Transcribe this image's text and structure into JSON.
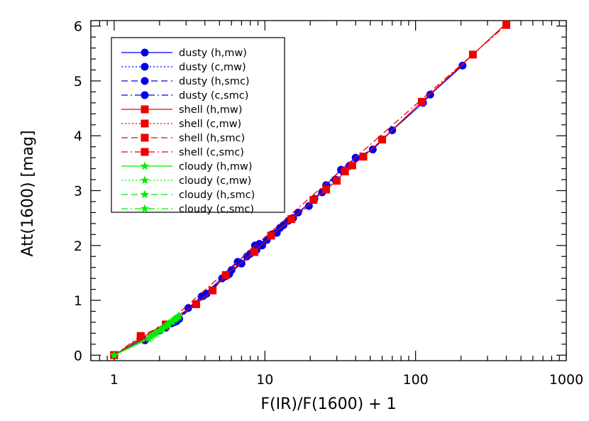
{
  "chart_data": {
    "type": "line",
    "title": "",
    "xlabel": "F(IR)/F(1600) + 1",
    "ylabel": "Att(1600) [mag]",
    "xscale": "log",
    "xlim": [
      0.7,
      1000
    ],
    "ylim": [
      -0.1,
      6.1
    ],
    "x_ticks": [
      1,
      10,
      100,
      1000
    ],
    "x_tick_labels": [
      "1",
      "10",
      "100",
      "1000"
    ],
    "y_ticks": [
      0,
      1,
      2,
      3,
      4,
      5,
      6
    ],
    "y_tick_labels": [
      "0",
      "1",
      "2",
      "3",
      "4",
      "5",
      "6"
    ],
    "grid": false,
    "legend": {
      "placement": "top-left",
      "entries": [
        "dusty (h,mw)",
        "dusty (c,mw)",
        "dusty (h,smc)",
        "dusty (c,smc)",
        "shell (h,mw)",
        "shell (c,mw)",
        "shell (h,smc)",
        "shell (c,smc)",
        "cloudy (h,mw)",
        "cloudy (c,mw)",
        "cloudy (h,smc)",
        "cloudy (c,smc)"
      ]
    },
    "colors": {
      "dusty": "#0000ee",
      "shell": "#ee0000",
      "cloudy": "#00ee00"
    },
    "series": [
      {
        "name": "dusty (h,mw)",
        "color": "#0000ee",
        "marker": "circle",
        "dash": "solid",
        "x": [
          1.0,
          1.6,
          2.2,
          2.7,
          3.1,
          3.8,
          5.2,
          6.6,
          8.6,
          10.3,
          13.3,
          16.6,
          21.3,
          25.5,
          32,
          40,
          52,
          70,
          112,
          125,
          205
        ],
        "y": [
          0.0,
          0.27,
          0.5,
          0.66,
          0.86,
          1.07,
          1.4,
          1.7,
          2.0,
          2.1,
          2.37,
          2.6,
          2.85,
          3.1,
          3.38,
          3.6,
          3.75,
          4.1,
          4.6,
          4.75,
          5.28
        ]
      },
      {
        "name": "dusty (c,mw)",
        "color": "#0000ee",
        "marker": "circle",
        "dash": "dot",
        "x": [
          1.0,
          2.0,
          2.5,
          3.9,
          6.0,
          7.6,
          9.2,
          12.0,
          15.4,
          19.6,
          24.0,
          29.3,
          36.3
        ],
        "y": [
          0.0,
          0.45,
          0.6,
          1.08,
          1.55,
          1.8,
          2.03,
          2.23,
          2.5,
          2.72,
          2.97,
          3.2,
          3.45
        ]
      },
      {
        "name": "dusty (h,smc)",
        "color": "#0000ee",
        "marker": "circle",
        "dash": "dash",
        "x": [
          1.0,
          2.4,
          5.5,
          7.0,
          8.8,
          11.1,
          14.3
        ],
        "y": [
          0.0,
          0.58,
          1.44,
          1.67,
          1.92,
          2.2,
          2.45
        ]
      },
      {
        "name": "dusty (c,smc)",
        "color": "#0000ee",
        "marker": "circle",
        "dash": "dashdot",
        "x": [
          1.0,
          2.6,
          4.1,
          5.8,
          8.0,
          9.6,
          12.6
        ],
        "y": [
          0.0,
          0.62,
          1.12,
          1.48,
          1.85,
          2.0,
          2.32
        ]
      },
      {
        "name": "shell (h,mw)",
        "color": "#ee0000",
        "marker": "square",
        "dash": "solid",
        "x": [
          1.0,
          3.5,
          4.5,
          5.5,
          8.5,
          11.0,
          15.0,
          21.0,
          25.5,
          30.0,
          34.0,
          38.0,
          45.0,
          60.0,
          110.0,
          240.0,
          400.0
        ],
        "y": [
          0.0,
          0.93,
          1.18,
          1.46,
          1.88,
          2.18,
          2.48,
          2.83,
          3.02,
          3.18,
          3.35,
          3.46,
          3.62,
          3.93,
          4.62,
          5.48,
          6.05
        ]
      },
      {
        "name": "shell (c,mw)",
        "color": "#ee0000",
        "marker": "square",
        "dash": "dot",
        "x": [
          1.0,
          1.5,
          2.2
        ],
        "y": [
          0.0,
          0.3,
          0.55
        ]
      },
      {
        "name": "shell (h,smc)",
        "color": "#ee0000",
        "marker": "square",
        "dash": "dash",
        "x": [
          1.0,
          1.5,
          2.2
        ],
        "y": [
          0.0,
          0.32,
          0.55
        ]
      },
      {
        "name": "shell (c,smc)",
        "color": "#ee0000",
        "marker": "square",
        "dash": "dashdot",
        "x": [
          1.0,
          1.5,
          2.2,
          400.0
        ],
        "y": [
          0.0,
          0.35,
          0.56,
          6.02
        ]
      },
      {
        "name": "cloudy (h,mw)",
        "color": "#00ee00",
        "marker": "star",
        "dash": "solid",
        "x": [
          1.0,
          1.7,
          1.9,
          2.1,
          2.3,
          2.5,
          2.65
        ],
        "y": [
          0.0,
          0.3,
          0.4,
          0.5,
          0.58,
          0.65,
          0.7
        ]
      },
      {
        "name": "cloudy (c,mw)",
        "color": "#00ee00",
        "marker": "star",
        "dash": "dot",
        "x": [
          1.0,
          1.75,
          2.0,
          2.2,
          2.4,
          2.6
        ],
        "y": [
          0.0,
          0.33,
          0.44,
          0.52,
          0.6,
          0.68
        ]
      },
      {
        "name": "cloudy (h,smc)",
        "color": "#00ee00",
        "marker": "star",
        "dash": "dash",
        "x": [
          1.0,
          1.8,
          2.05,
          2.25,
          2.45,
          2.7
        ],
        "y": [
          0.0,
          0.36,
          0.46,
          0.55,
          0.62,
          0.71
        ]
      },
      {
        "name": "cloudy (c,smc)",
        "color": "#00ee00",
        "marker": "star",
        "dash": "dashdot",
        "x": [
          1.0,
          1.85,
          2.1,
          2.3,
          2.55
        ],
        "y": [
          0.0,
          0.38,
          0.48,
          0.56,
          0.66
        ]
      }
    ]
  }
}
